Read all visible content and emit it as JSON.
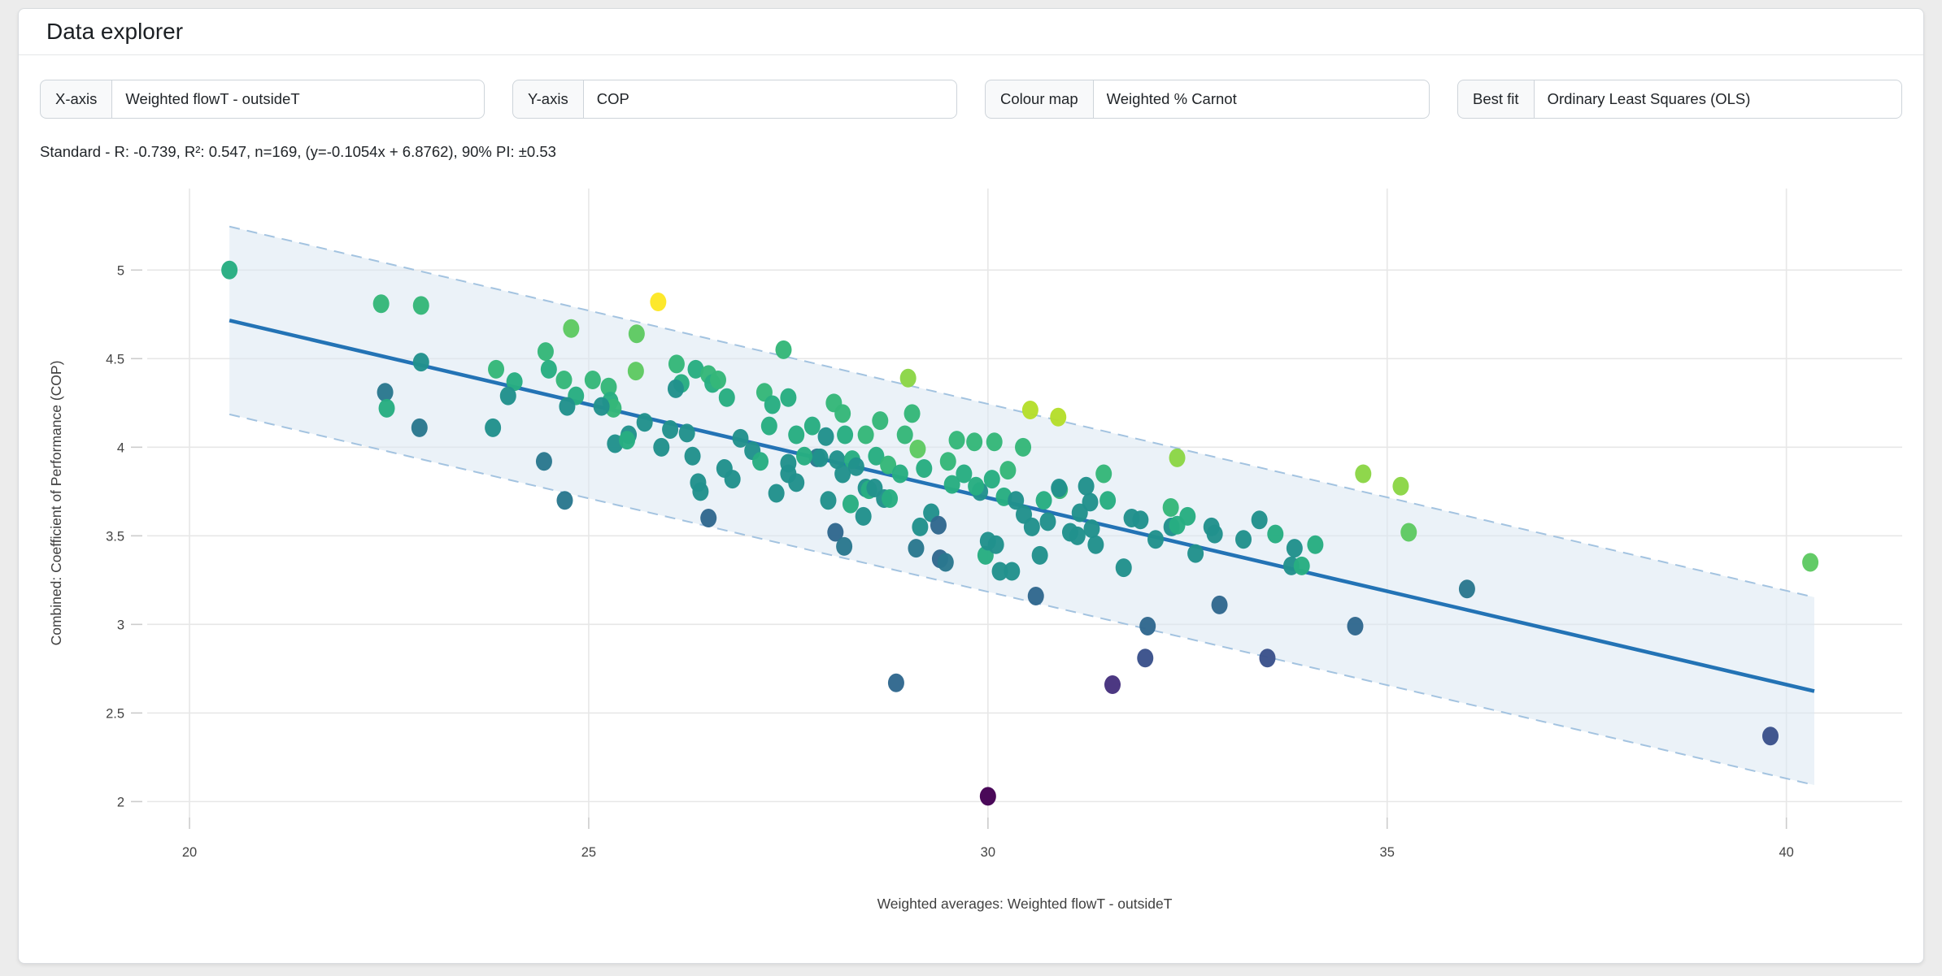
{
  "header": {
    "title": "Data explorer"
  },
  "controls": [
    {
      "label": "X-axis",
      "value": "Weighted flowT - outsideT"
    },
    {
      "label": "Y-axis",
      "value": "COP"
    },
    {
      "label": "Colour map",
      "value": "Weighted % Carnot"
    },
    {
      "label": "Best fit",
      "value": "Ordinary Least Squares (OLS)"
    }
  ],
  "stats_line": "Standard - R: -0.739, R²: 0.547, n=169, (y=-0.1054x + 6.8762), 90% PI: ±0.53",
  "chart_data": {
    "type": "scatter",
    "xlabel": "Weighted averages: Weighted flowT - outsideT",
    "ylabel": "Combined: Coefficient of Performance (COP)",
    "xlim": [
      19.47,
      41.45
    ],
    "ylim": [
      1.91,
      5.46
    ],
    "xticks": [
      20,
      25,
      30,
      35,
      40
    ],
    "yticks": [
      2,
      2.5,
      3,
      3.5,
      4,
      4.5,
      5
    ],
    "grid": true,
    "colormap": "viridis",
    "color_field": "Weighted % Carnot",
    "stats": {
      "r": -0.739,
      "r2": 0.547,
      "n": 169,
      "pi_90": 0.53
    },
    "fit": {
      "type": "Ordinary Least Squares (OLS)",
      "slope": -0.1054,
      "intercept": 6.8762,
      "x_range": [
        20.5,
        40.35
      ],
      "pi": 0.53,
      "line_color": "#2373b5",
      "band_fill": "#dbe7f3",
      "band_fill_opacity": 0.55,
      "band_edge": "#a3c3e0"
    },
    "grid_color": "#e7e7e7",
    "palette": [
      "#440154",
      "#46327e",
      "#3b528b",
      "#31688e",
      "#2a788e",
      "#21918c",
      "#27ad81",
      "#35b779",
      "#5ec962",
      "#8bd646",
      "#b5de2b",
      "#fde725"
    ],
    "points": [
      [
        20.5,
        5.0,
        6
      ],
      [
        22.4,
        4.81,
        7
      ],
      [
        22.9,
        4.8,
        7
      ],
      [
        22.9,
        4.48,
        5
      ],
      [
        22.45,
        4.31,
        4
      ],
      [
        22.47,
        4.22,
        6
      ],
      [
        22.88,
        4.11,
        4
      ],
      [
        23.84,
        4.44,
        7
      ],
      [
        24.07,
        4.37,
        6
      ],
      [
        23.99,
        4.29,
        5
      ],
      [
        23.8,
        4.11,
        5
      ],
      [
        24.44,
        3.92,
        4
      ],
      [
        24.7,
        3.7,
        4
      ],
      [
        24.46,
        4.54,
        7
      ],
      [
        24.78,
        4.67,
        8
      ],
      [
        25.6,
        4.64,
        8
      ],
      [
        24.5,
        4.44,
        6
      ],
      [
        24.69,
        4.38,
        7
      ],
      [
        25.05,
        4.38,
        7
      ],
      [
        25.25,
        4.34,
        7
      ],
      [
        24.84,
        4.29,
        6
      ],
      [
        24.73,
        4.23,
        5
      ],
      [
        25.27,
        4.26,
        6
      ],
      [
        25.31,
        4.22,
        7
      ],
      [
        25.59,
        4.43,
        8
      ],
      [
        25.5,
        4.07,
        5
      ],
      [
        25.33,
        4.02,
        5
      ],
      [
        25.48,
        4.04,
        6
      ],
      [
        25.87,
        4.82,
        11
      ],
      [
        25.7,
        4.14,
        5
      ],
      [
        25.91,
        4.0,
        5
      ],
      [
        26.02,
        4.1,
        5
      ],
      [
        25.16,
        4.23,
        5
      ],
      [
        26.1,
        4.47,
        7
      ],
      [
        26.34,
        4.44,
        6
      ],
      [
        26.5,
        4.41,
        7
      ],
      [
        26.55,
        4.36,
        6
      ],
      [
        26.16,
        4.36,
        6
      ],
      [
        26.09,
        4.33,
        5
      ],
      [
        26.62,
        4.38,
        7
      ],
      [
        26.73,
        4.28,
        6
      ],
      [
        26.23,
        4.08,
        5
      ],
      [
        26.3,
        3.95,
        5
      ],
      [
        26.37,
        3.8,
        5
      ],
      [
        26.4,
        3.75,
        5
      ],
      [
        26.5,
        3.6,
        3
      ],
      [
        26.8,
        3.82,
        5
      ],
      [
        26.7,
        3.88,
        5
      ],
      [
        27.2,
        4.31,
        7
      ],
      [
        27.3,
        4.24,
        6
      ],
      [
        27.26,
        4.12,
        6
      ],
      [
        27.44,
        4.55,
        7
      ],
      [
        27.5,
        4.28,
        6
      ],
      [
        27.5,
        3.85,
        5
      ],
      [
        27.6,
        3.8,
        5
      ],
      [
        27.6,
        4.07,
        6
      ],
      [
        27.5,
        3.91,
        5
      ],
      [
        28.07,
        4.25,
        7
      ],
      [
        28.18,
        4.19,
        7
      ],
      [
        28.47,
        4.07,
        7
      ],
      [
        28.21,
        4.07,
        6
      ],
      [
        27.97,
        4.06,
        5
      ],
      [
        28.96,
        4.07,
        7
      ],
      [
        29.05,
        4.19,
        7
      ],
      [
        29.0,
        4.39,
        9
      ],
      [
        27.86,
        3.94,
        4
      ],
      [
        27.9,
        3.94,
        5
      ],
      [
        28.11,
        3.93,
        5
      ],
      [
        28.18,
        3.85,
        5
      ],
      [
        28.3,
        3.93,
        6
      ],
      [
        28.35,
        3.89,
        5
      ],
      [
        28.47,
        3.77,
        5
      ],
      [
        28.51,
        3.76,
        6
      ],
      [
        28.58,
        3.77,
        5
      ],
      [
        28.7,
        3.71,
        5
      ],
      [
        28.77,
        3.71,
        6
      ],
      [
        28.0,
        3.7,
        5
      ],
      [
        28.28,
        3.68,
        6
      ],
      [
        28.44,
        3.61,
        5
      ],
      [
        28.09,
        3.52,
        3
      ],
      [
        28.2,
        3.44,
        4
      ],
      [
        28.85,
        2.67,
        3
      ],
      [
        29.29,
        3.63,
        5
      ],
      [
        29.38,
        3.56,
        3
      ],
      [
        29.1,
        3.43,
        4
      ],
      [
        29.4,
        3.37,
        3
      ],
      [
        29.47,
        3.35,
        4
      ],
      [
        29.61,
        4.04,
        7
      ],
      [
        29.83,
        4.03,
        7
      ],
      [
        30.08,
        4.03,
        7
      ],
      [
        30.44,
        4.0,
        7
      ],
      [
        29.12,
        3.99,
        8
      ],
      [
        29.97,
        3.39,
        6
      ],
      [
        30.0,
        3.47,
        5
      ],
      [
        30.1,
        3.45,
        5
      ],
      [
        30.15,
        3.3,
        5
      ],
      [
        30.3,
        3.3,
        5
      ],
      [
        30.6,
        3.16,
        3
      ],
      [
        30.53,
        4.21,
        10
      ],
      [
        30.88,
        4.17,
        10
      ],
      [
        30.0,
        2.03,
        0
      ],
      [
        30.65,
        3.39,
        5
      ],
      [
        31.45,
        3.85,
        7
      ],
      [
        30.9,
        3.76,
        7
      ],
      [
        31.23,
        3.78,
        5
      ],
      [
        31.28,
        3.69,
        5
      ],
      [
        30.89,
        3.77,
        5
      ],
      [
        32.29,
        3.66,
        7
      ],
      [
        31.03,
        3.52,
        5
      ],
      [
        31.3,
        3.54,
        5
      ],
      [
        31.8,
        3.6,
        5
      ],
      [
        31.91,
        3.59,
        5
      ],
      [
        32.3,
        3.55,
        5
      ],
      [
        32.37,
        3.56,
        6
      ],
      [
        32.8,
        3.55,
        5
      ],
      [
        32.84,
        3.51,
        5
      ],
      [
        32.37,
        3.94,
        9
      ],
      [
        31.12,
        3.5,
        5
      ],
      [
        31.7,
        3.32,
        5
      ],
      [
        32.6,
        3.4,
        5
      ],
      [
        31.56,
        2.66,
        1
      ],
      [
        31.97,
        2.81,
        2
      ],
      [
        32.0,
        2.99,
        3
      ],
      [
        33.5,
        2.81,
        2
      ],
      [
        33.4,
        3.59,
        5
      ],
      [
        33.84,
        3.43,
        5
      ],
      [
        33.8,
        3.33,
        5
      ],
      [
        33.93,
        3.33,
        6
      ],
      [
        34.7,
        3.85,
        9
      ],
      [
        35.17,
        3.78,
        9
      ],
      [
        35.27,
        3.52,
        8
      ],
      [
        36.0,
        3.2,
        4
      ],
      [
        34.6,
        2.99,
        3
      ],
      [
        32.9,
        3.11,
        3
      ],
      [
        40.3,
        3.35,
        8
      ],
      [
        39.8,
        2.37,
        2
      ],
      [
        29.9,
        3.75,
        5
      ],
      [
        30.2,
        3.72,
        6
      ],
      [
        30.35,
        3.7,
        5
      ],
      [
        29.55,
        3.79,
        6
      ],
      [
        30.7,
        3.7,
        6
      ],
      [
        29.15,
        3.55,
        5
      ],
      [
        26.9,
        4.05,
        5
      ],
      [
        27.05,
        3.98,
        5
      ],
      [
        27.15,
        3.92,
        6
      ],
      [
        27.35,
        3.74,
        5
      ],
      [
        27.7,
        3.95,
        6
      ],
      [
        27.8,
        4.12,
        6
      ],
      [
        28.6,
        3.95,
        6
      ],
      [
        28.75,
        3.9,
        7
      ],
      [
        28.9,
        3.85,
        6
      ],
      [
        29.2,
        3.88,
        6
      ],
      [
        29.5,
        3.92,
        7
      ],
      [
        29.7,
        3.85,
        6
      ],
      [
        29.85,
        3.78,
        6
      ],
      [
        30.05,
        3.82,
        6
      ],
      [
        30.25,
        3.87,
        7
      ],
      [
        30.45,
        3.62,
        5
      ],
      [
        30.55,
        3.55,
        5
      ],
      [
        30.75,
        3.58,
        5
      ],
      [
        31.5,
        3.7,
        6
      ],
      [
        31.15,
        3.63,
        5
      ],
      [
        31.35,
        3.45,
        5
      ],
      [
        32.1,
        3.48,
        5
      ],
      [
        32.5,
        3.61,
        6
      ],
      [
        33.2,
        3.48,
        5
      ],
      [
        33.6,
        3.51,
        6
      ],
      [
        34.1,
        3.45,
        6
      ],
      [
        28.65,
        4.15,
        7
      ]
    ]
  }
}
